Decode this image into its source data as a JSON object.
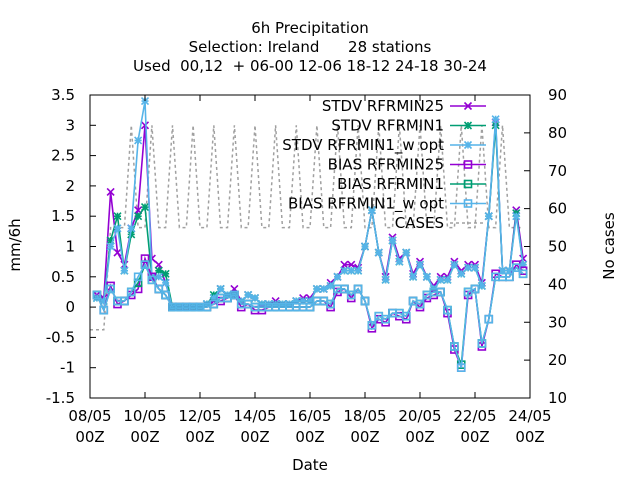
{
  "chart_data": {
    "type": "line",
    "title_lines": [
      "6h Precipitation",
      "Selection: Ireland      28 stations",
      "Used  00,12  + 06-00 12-06 18-12 24-18 30-24"
    ],
    "xlabel": "Date",
    "ylabel": "mm/6h",
    "y2label": "No cases",
    "xlim": [
      0,
      64
    ],
    "ylim": [
      -1.5,
      3.5
    ],
    "y2lim": [
      10,
      90
    ],
    "yticks": [
      "3.5",
      "3",
      "2.5",
      "2",
      "1.5",
      "1",
      "0.5",
      "0",
      "-0.5",
      "-1",
      "-1.5"
    ],
    "y2ticks": [
      "90",
      "80",
      "70",
      "60",
      "50",
      "40",
      "30",
      "20",
      "10"
    ],
    "xticks": [
      {
        "line1": "08/05",
        "line2": "00Z"
      },
      {
        "line1": "10/05",
        "line2": "00Z"
      },
      {
        "line1": "12/05",
        "line2": "00Z"
      },
      {
        "line1": "14/05",
        "line2": "00Z"
      },
      {
        "line1": "16/05",
        "line2": "00Z"
      },
      {
        "line1": "18/05",
        "line2": "00Z"
      },
      {
        "line1": "20/05",
        "line2": "00Z"
      },
      {
        "line1": "22/05",
        "line2": "00Z"
      },
      {
        "line1": "24/05",
        "line2": "00Z"
      }
    ],
    "legend_position": "top-right",
    "x": [
      1,
      2,
      3,
      4,
      5,
      6,
      7,
      8,
      9,
      10,
      11,
      12,
      13,
      14,
      15,
      16,
      17,
      18,
      19,
      20,
      21,
      22,
      23,
      24,
      25,
      26,
      27,
      28,
      29,
      30,
      31,
      32,
      33,
      34,
      35,
      36,
      37,
      38,
      39,
      40,
      41,
      42,
      43,
      44,
      45,
      46,
      47,
      48,
      49,
      50,
      51,
      52,
      53,
      54,
      55,
      56,
      57,
      58,
      59,
      60,
      61,
      62,
      63
    ],
    "series": [
      {
        "name": "STDV RFRMIN25",
        "color": "#9400d3",
        "marker": "x",
        "axis": "y1",
        "values": [
          0.2,
          0.15,
          1.9,
          0.9,
          0.7,
          1.3,
          1.6,
          3.0,
          0.8,
          0.7,
          0.4,
          0.0,
          0.0,
          0.0,
          0.0,
          0.0,
          0.05,
          0.1,
          0.3,
          0.2,
          0.3,
          0.1,
          0.2,
          0.15,
          0.05,
          0.05,
          0.1,
          0.05,
          0.05,
          0.1,
          0.15,
          0.15,
          0.3,
          0.3,
          0.4,
          0.5,
          0.7,
          0.7,
          0.65,
          1.0,
          1.6,
          0.9,
          0.5,
          1.15,
          0.8,
          0.9,
          0.55,
          0.75,
          0.5,
          0.35,
          0.5,
          0.5,
          0.75,
          0.6,
          0.7,
          0.7,
          0.4,
          1.5,
          3.05,
          0.6,
          0.6,
          1.6,
          0.8
        ]
      },
      {
        "name": "STDV RFRMIN1",
        "color": "#009e73",
        "marker": "star",
        "axis": "y1",
        "values": [
          0.15,
          0.1,
          1.1,
          1.5,
          0.6,
          1.2,
          1.5,
          1.65,
          0.5,
          0.6,
          0.55,
          0.0,
          0.0,
          0.0,
          0.0,
          0.0,
          0.05,
          0.2,
          0.3,
          0.2,
          0.2,
          0.1,
          0.2,
          0.15,
          0.05,
          0.05,
          0.05,
          0.05,
          0.05,
          0.1,
          0.1,
          0.1,
          0.3,
          0.3,
          0.35,
          0.5,
          0.6,
          0.6,
          0.6,
          1.0,
          1.6,
          0.9,
          0.45,
          1.1,
          0.75,
          0.9,
          0.5,
          0.7,
          0.5,
          0.3,
          0.45,
          0.45,
          0.7,
          0.55,
          0.65,
          0.65,
          0.35,
          1.5,
          3.0,
          0.6,
          0.6,
          1.55,
          0.7
        ]
      },
      {
        "name": "STDV RFRMIN1_w opt",
        "color": "#56b4e9",
        "marker": "star",
        "axis": "y1",
        "values": [
          0.15,
          0.1,
          1.0,
          1.3,
          0.6,
          1.3,
          2.75,
          3.4,
          0.5,
          0.5,
          0.4,
          0.0,
          0.0,
          0.0,
          0.0,
          0.0,
          0.05,
          0.15,
          0.3,
          0.2,
          0.2,
          0.1,
          0.2,
          0.15,
          0.05,
          0.05,
          0.05,
          0.05,
          0.05,
          0.1,
          0.1,
          0.1,
          0.3,
          0.3,
          0.35,
          0.5,
          0.6,
          0.6,
          0.6,
          1.0,
          1.6,
          0.9,
          0.45,
          1.1,
          0.75,
          0.9,
          0.5,
          0.7,
          0.5,
          0.3,
          0.45,
          0.45,
          0.7,
          0.55,
          0.65,
          0.65,
          0.35,
          1.5,
          3.1,
          0.6,
          0.6,
          1.5,
          0.7
        ]
      },
      {
        "name": "BIAS RFRMIN25",
        "color": "#9400d3",
        "marker": "square",
        "axis": "y1",
        "values": [
          0.2,
          -0.05,
          0.35,
          0.05,
          0.1,
          0.2,
          0.3,
          0.8,
          0.5,
          0.3,
          0.2,
          0.0,
          0.0,
          0.0,
          0.0,
          0.0,
          0.0,
          0.05,
          0.1,
          0.15,
          0.2,
          0.0,
          0.05,
          -0.05,
          -0.05,
          0.0,
          0.0,
          0.0,
          0.0,
          0.0,
          0.0,
          0.0,
          0.1,
          0.1,
          0.0,
          0.25,
          0.3,
          0.15,
          0.3,
          0.1,
          -0.35,
          -0.2,
          -0.25,
          -0.1,
          -0.15,
          -0.2,
          0.1,
          0.0,
          0.15,
          0.2,
          0.25,
          -0.1,
          -0.7,
          -1.0,
          0.2,
          0.3,
          -0.65,
          -0.2,
          0.55,
          0.5,
          0.5,
          0.7,
          0.6
        ]
      },
      {
        "name": "BIAS RFRMIN1",
        "color": "#009e73",
        "marker": "square",
        "axis": "y1",
        "values": [
          0.2,
          -0.05,
          0.3,
          0.1,
          0.1,
          0.25,
          0.4,
          0.7,
          0.45,
          0.3,
          0.2,
          0.0,
          0.0,
          0.0,
          0.0,
          0.0,
          0.0,
          0.05,
          0.15,
          0.15,
          0.2,
          0.05,
          0.05,
          0.0,
          0.0,
          0.0,
          0.0,
          0.0,
          0.0,
          0.0,
          0.0,
          0.0,
          0.1,
          0.1,
          0.05,
          0.3,
          0.3,
          0.2,
          0.3,
          0.1,
          -0.3,
          -0.15,
          -0.2,
          -0.1,
          -0.1,
          -0.15,
          0.1,
          0.05,
          0.2,
          0.25,
          0.25,
          -0.05,
          -0.65,
          -0.95,
          0.25,
          0.3,
          -0.6,
          -0.2,
          0.5,
          0.5,
          0.5,
          0.65,
          0.55
        ]
      },
      {
        "name": "BIAS RFRMIN1_w opt",
        "color": "#56b4e9",
        "marker": "square",
        "axis": "y1",
        "values": [
          0.2,
          -0.05,
          0.3,
          0.1,
          0.1,
          0.25,
          0.5,
          0.7,
          0.45,
          0.3,
          0.2,
          0.0,
          0.0,
          0.0,
          0.0,
          0.0,
          0.0,
          0.05,
          0.15,
          0.15,
          0.2,
          0.05,
          0.05,
          0.0,
          0.0,
          0.0,
          0.0,
          0.0,
          0.0,
          0.0,
          0.0,
          0.0,
          0.1,
          0.1,
          0.05,
          0.3,
          0.3,
          0.2,
          0.3,
          0.1,
          -0.3,
          -0.15,
          -0.2,
          -0.1,
          -0.1,
          -0.15,
          0.1,
          0.05,
          0.2,
          0.25,
          0.25,
          -0.05,
          -0.65,
          -1.0,
          0.25,
          0.3,
          -0.6,
          -0.2,
          0.5,
          0.5,
          0.5,
          0.65,
          0.55
        ]
      },
      {
        "name": "CASES",
        "color": "#a0a0a0",
        "marker": "none",
        "dashed": true,
        "axis": "y2",
        "x": [
          0,
          1,
          2,
          3,
          4,
          5,
          6,
          7,
          8,
          9,
          10,
          11,
          12,
          13,
          14,
          15,
          16,
          17,
          18,
          19,
          20,
          21,
          22,
          23,
          24,
          25,
          26,
          27,
          28,
          29,
          30,
          31,
          32,
          33,
          34,
          35,
          36,
          37,
          38,
          39,
          40,
          41,
          42,
          43,
          44,
          45,
          46,
          47,
          48,
          49,
          50,
          51,
          52,
          53,
          54,
          55,
          56,
          57,
          58,
          59,
          60,
          61,
          62,
          63
        ],
        "values": [
          28,
          28,
          28,
          55,
          55,
          55,
          82,
          55,
          55,
          82,
          55,
          55,
          82,
          55,
          55,
          82,
          55,
          55,
          82,
          55,
          55,
          82,
          55,
          55,
          82,
          55,
          55,
          82,
          55,
          55,
          82,
          55,
          55,
          82,
          55,
          55,
          82,
          55,
          55,
          82,
          55,
          55,
          82,
          55,
          55,
          82,
          55,
          55,
          82,
          55,
          55,
          82,
          55,
          55,
          82,
          55,
          55,
          82,
          55,
          55,
          82,
          55,
          55,
          55
        ]
      }
    ]
  }
}
